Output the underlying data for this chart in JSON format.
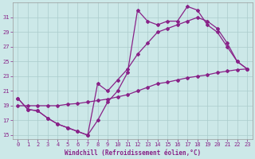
{
  "xlabel": "Windchill (Refroidissement éolien,°C)",
  "background_color": "#cce8e8",
  "line_color": "#882288",
  "grid_color": "#aacccc",
  "xlim": [
    -0.5,
    23.5
  ],
  "ylim": [
    14.5,
    33
  ],
  "yticks": [
    15,
    17,
    19,
    21,
    23,
    25,
    27,
    29,
    31
  ],
  "xticks": [
    0,
    1,
    2,
    3,
    4,
    5,
    6,
    7,
    8,
    9,
    10,
    11,
    12,
    13,
    14,
    15,
    16,
    17,
    18,
    19,
    20,
    21,
    22,
    23
  ],
  "line1_x": [
    0,
    1,
    2,
    3,
    4,
    5,
    6,
    7,
    8,
    9,
    10,
    11,
    12,
    13,
    14,
    15,
    16,
    17,
    18,
    19,
    20,
    21,
    22,
    23
  ],
  "line1_y": [
    20,
    18.5,
    18.3,
    17.3,
    16.5,
    16.0,
    15.5,
    15.0,
    17.0,
    19.5,
    21.0,
    23.5,
    32.0,
    30.5,
    30.0,
    30.5,
    30.5,
    32.5,
    32.0,
    30.0,
    29.0,
    27.0,
    25.0,
    24.0
  ],
  "line2_x": [
    0,
    1,
    2,
    3,
    4,
    5,
    6,
    7,
    8,
    9,
    10,
    11,
    12,
    13,
    14,
    15,
    16,
    17,
    18,
    19,
    20,
    21,
    22,
    23
  ],
  "line2_y": [
    20,
    18.5,
    18.3,
    17.3,
    16.5,
    16.0,
    15.5,
    15.0,
    22.0,
    21.0,
    22.5,
    24.0,
    26.0,
    27.5,
    29.0,
    29.5,
    30.0,
    30.5,
    31.0,
    30.5,
    29.5,
    27.5,
    25.0,
    24.0
  ],
  "line3_x": [
    0,
    1,
    2,
    3,
    4,
    5,
    6,
    7,
    8,
    9,
    10,
    11,
    12,
    13,
    14,
    15,
    16,
    17,
    18,
    19,
    20,
    21,
    22,
    23
  ],
  "line3_y": [
    19,
    19.0,
    19.0,
    19.0,
    19.0,
    19.2,
    19.3,
    19.5,
    19.7,
    19.9,
    20.2,
    20.5,
    21.0,
    21.5,
    22.0,
    22.2,
    22.5,
    22.8,
    23.0,
    23.2,
    23.5,
    23.7,
    23.9,
    24.0
  ]
}
